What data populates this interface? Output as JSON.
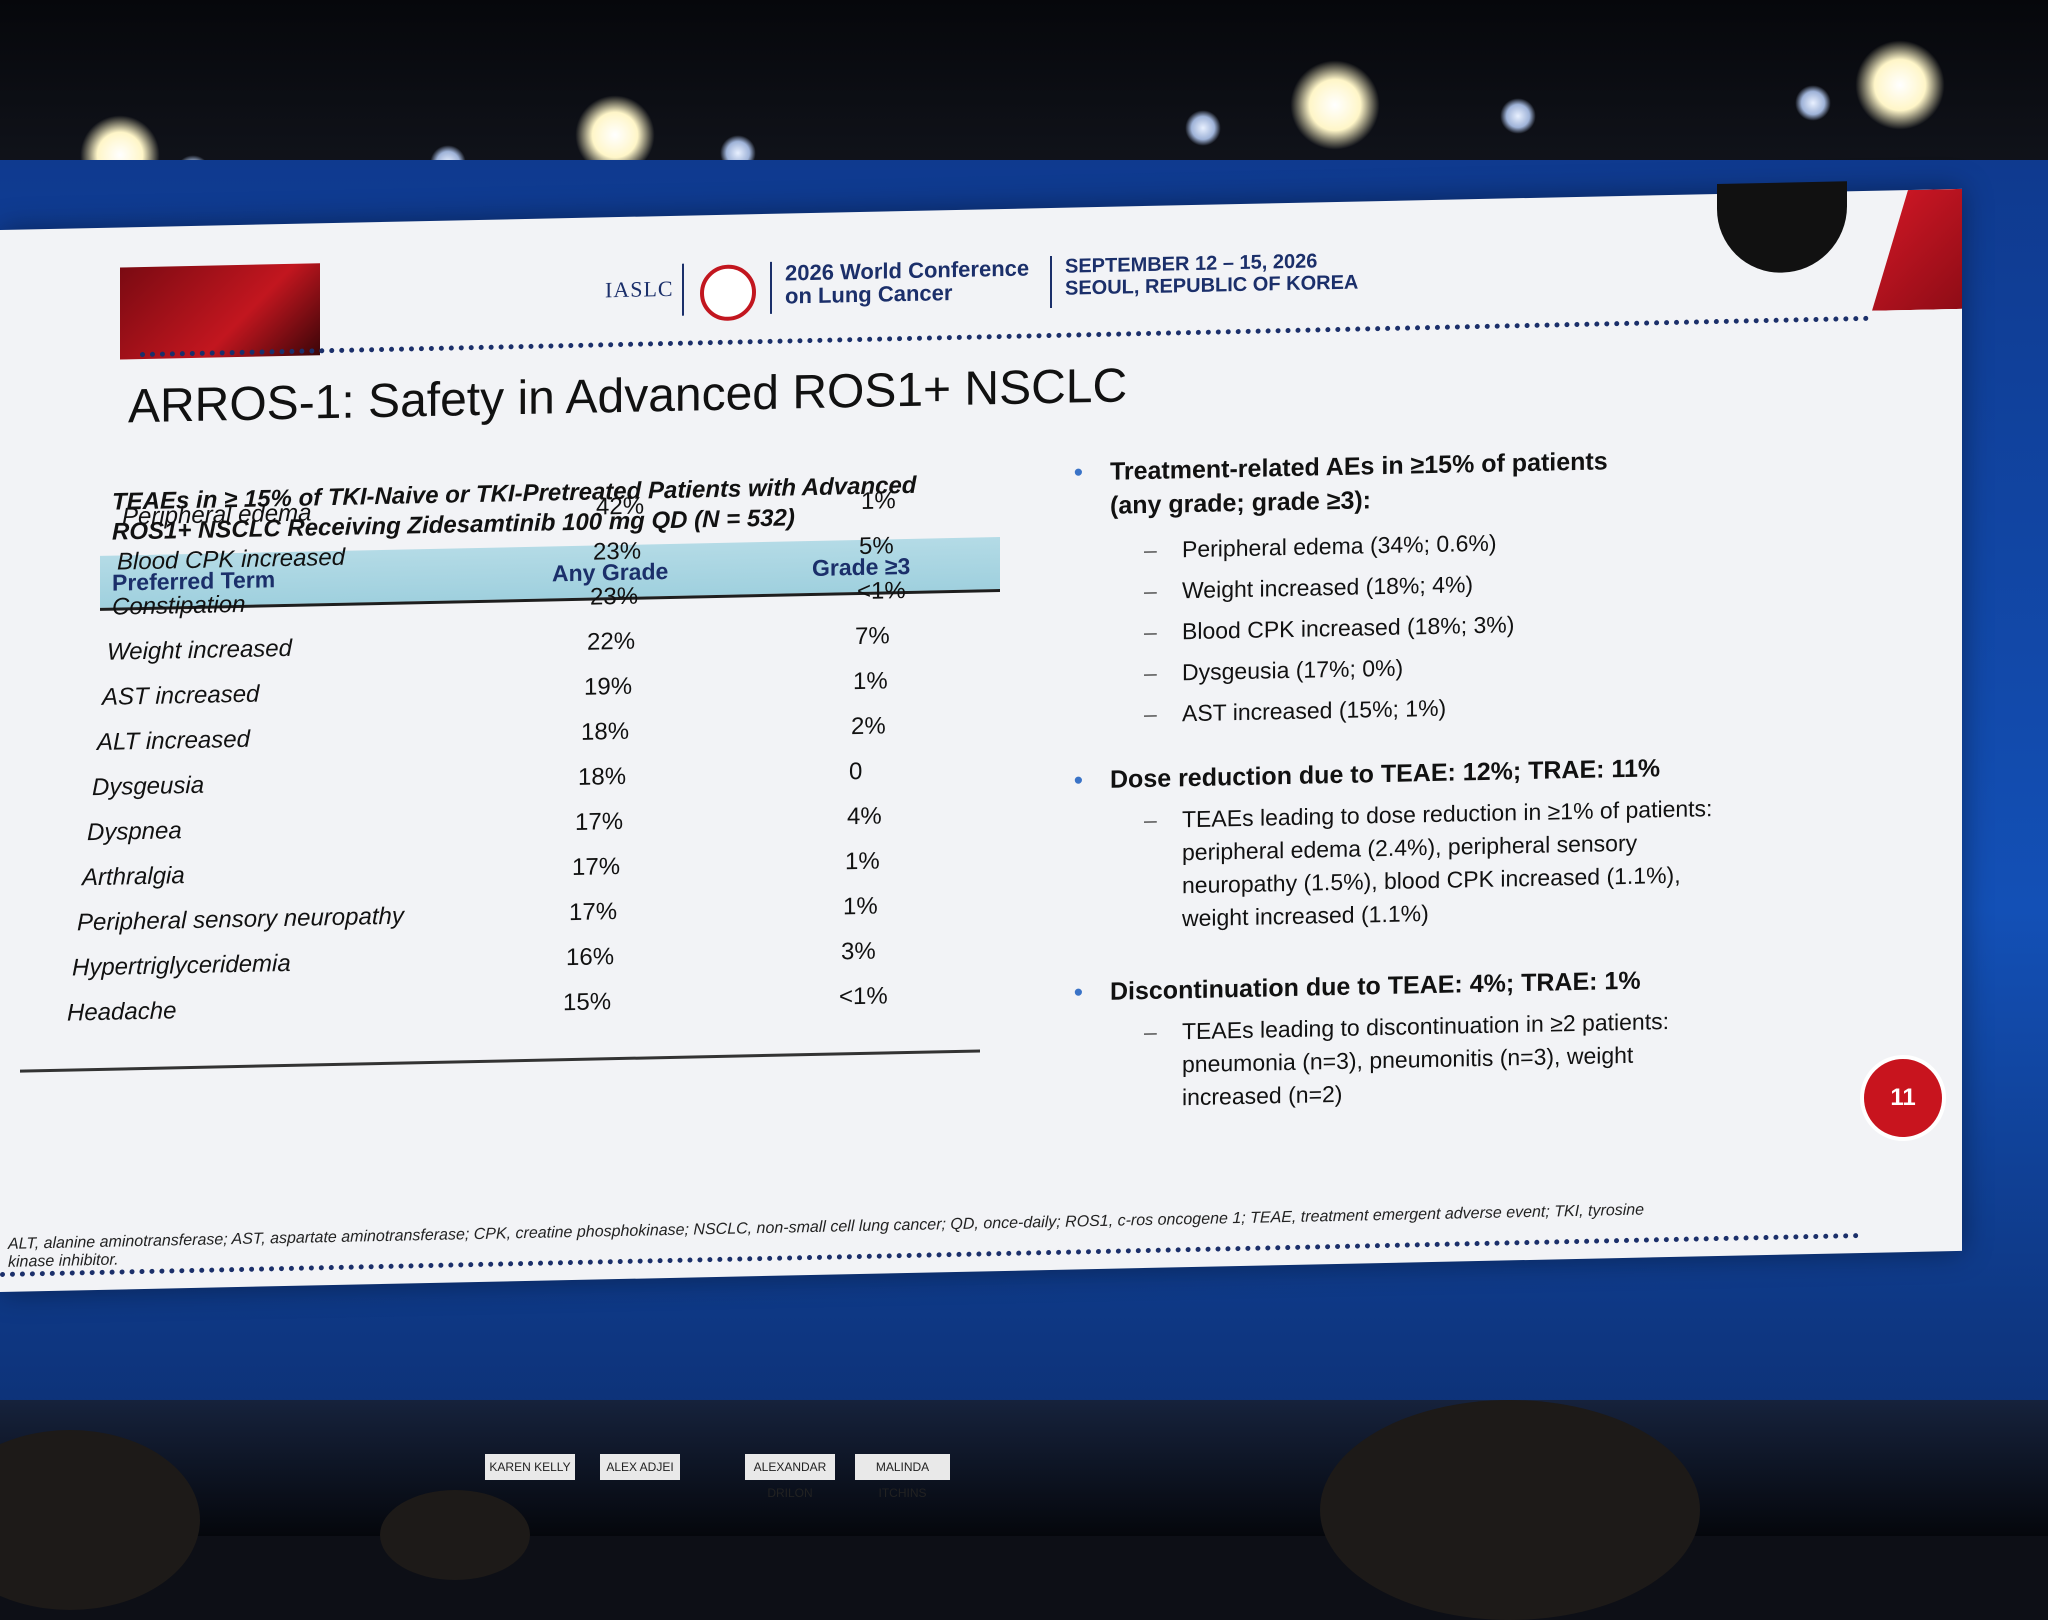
{
  "header": {
    "org": "IASLC",
    "conference_line1": "2026 World Conference",
    "conference_line2": "on Lung Cancer",
    "dates": "SEPTEMBER 12 – 15, 2026",
    "location": "SEOUL, REPUBLIC OF KOREA"
  },
  "slide_title": "ARROS-1: Safety in Advanced ROS1+ NSCLC",
  "table": {
    "caption_line1": "TEAEs in ≥ 15% of TKI-Naive or TKI-Pretreated Patients with Advanced",
    "caption_line2": "ROS1+ NSCLC Receiving Zidesamtinib 100 mg QD (N = 532)",
    "headers": [
      "Preferred Term",
      "Any Grade",
      "Grade ≥3"
    ],
    "rows": [
      [
        "Peripheral edema",
        "42%",
        "1%"
      ],
      [
        "Blood CPK increased",
        "23%",
        "5%"
      ],
      [
        "Constipation",
        "23%",
        "<1%"
      ],
      [
        "Weight increased",
        "22%",
        "7%"
      ],
      [
        "AST increased",
        "19%",
        "1%"
      ],
      [
        "ALT increased",
        "18%",
        "2%"
      ],
      [
        "Dysgeusia",
        "18%",
        "0"
      ],
      [
        "Dyspnea",
        "17%",
        "4%"
      ],
      [
        "Arthralgia",
        "17%",
        "1%"
      ],
      [
        "Peripheral sensory neuropathy",
        "17%",
        "1%"
      ],
      [
        "Hypertriglyceridemia",
        "16%",
        "3%"
      ],
      [
        "Headache",
        "15%",
        "<1%"
      ]
    ]
  },
  "bullets": {
    "b1_line1": "Treatment-related AEs in ≥15% of patients",
    "b1_line2": "(any grade; grade ≥3):",
    "b1_subs": [
      "Peripheral edema (34%; 0.6%)",
      "Weight increased (18%; 4%)",
      "Blood CPK increased (18%; 3%)",
      "Dysgeusia (17%; 0%)",
      "AST increased (15%; 1%)"
    ],
    "b2": "Dose reduction due to TEAE: 12%; TRAE: 11%",
    "b2_sub": [
      "TEAEs leading to dose reduction in ≥1% of patients:",
      "peripheral edema (2.4%), peripheral sensory",
      "neuropathy (1.5%), blood CPK increased (1.1%),",
      "weight increased (1.1%)"
    ],
    "b3": "Discontinuation due to TEAE: 4%; TRAE: 1%",
    "b3_sub": [
      "TEAEs leading to discontinuation in ≥2 patients:",
      "pneumonia (n=3), pneumonitis (n=3), weight",
      "increased (n=2)"
    ]
  },
  "footnote": {
    "line1": "ALT, alanine aminotransferase; AST, aspartate aminotransferase; CPK, creatine phosphokinase; NSCLC, non-small cell lung cancer; QD, once-daily; ROS1, c-ros oncogene 1; TEAE, treatment emergent adverse event; TKI, tyrosine",
    "line2": "kinase inhibitor."
  },
  "page_number": "11",
  "nameplates": [
    "KAREN KELLY",
    "ALEX ADJEI",
    "ALEXANDAR DRILON",
    "MALINDA ITCHINS"
  ]
}
